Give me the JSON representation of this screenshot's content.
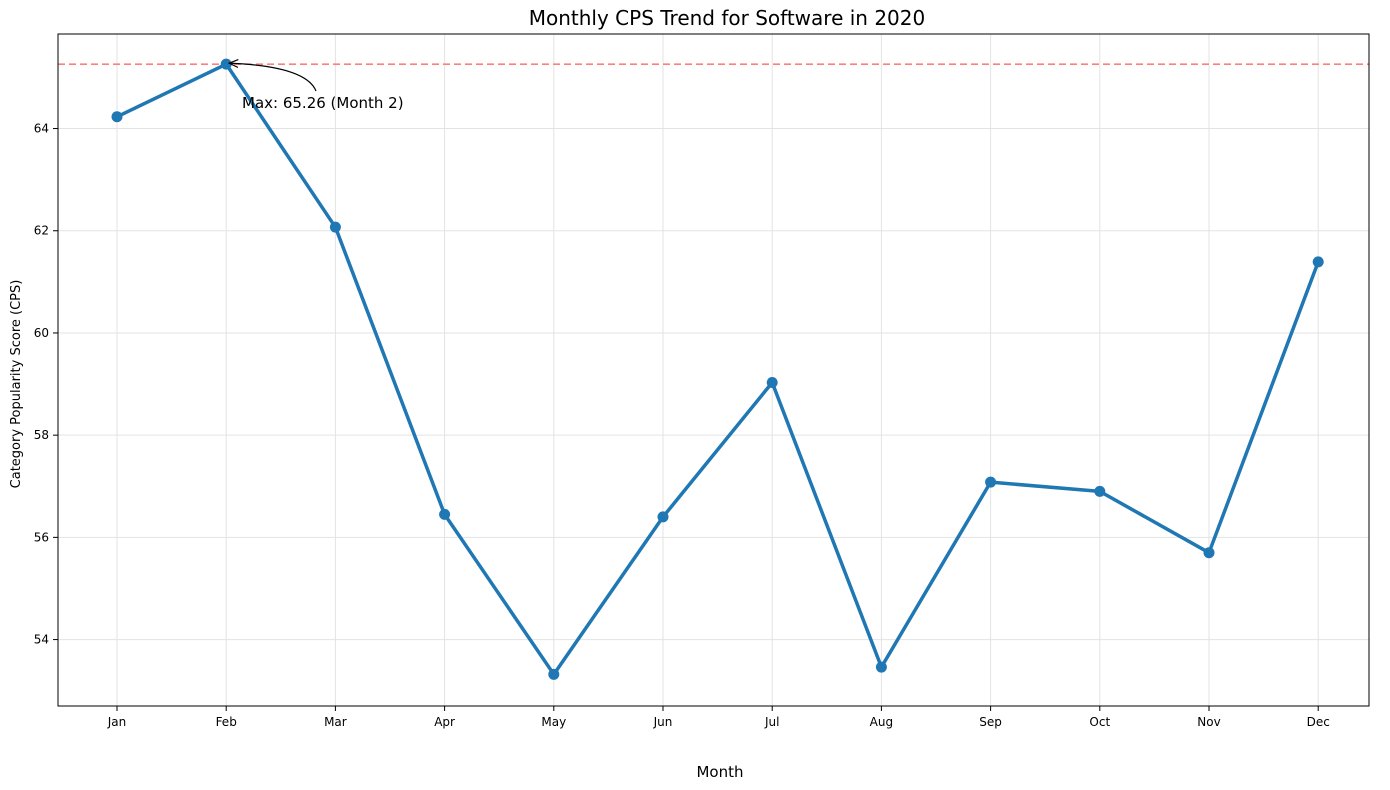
{
  "chart_data": {
    "type": "line",
    "title": "Monthly CPS Trend for Software in 2020",
    "xlabel": "Month",
    "ylabel": "Category Popularity Score (CPS)",
    "categories": [
      "Jan",
      "Feb",
      "Mar",
      "Apr",
      "May",
      "Jun",
      "Jul",
      "Aug",
      "Sep",
      "Oct",
      "Nov",
      "Dec"
    ],
    "series": [
      {
        "values": [
          64.23,
          65.26,
          62.07,
          56.45,
          53.32,
          56.4,
          59.03,
          53.46,
          57.08,
          56.9,
          55.7,
          61.39
        ],
        "color": "#1f77b4"
      }
    ],
    "ylim": [
      52.7,
      65.85
    ],
    "yticks": [
      54,
      56,
      58,
      60,
      62,
      64
    ],
    "grid": true,
    "reference_line": {
      "value": 65.26,
      "color": "#ff7f7f",
      "style": "dashed"
    },
    "annotation": {
      "text": "Max: 65.26 (Month 2)",
      "target_index": 1
    }
  }
}
